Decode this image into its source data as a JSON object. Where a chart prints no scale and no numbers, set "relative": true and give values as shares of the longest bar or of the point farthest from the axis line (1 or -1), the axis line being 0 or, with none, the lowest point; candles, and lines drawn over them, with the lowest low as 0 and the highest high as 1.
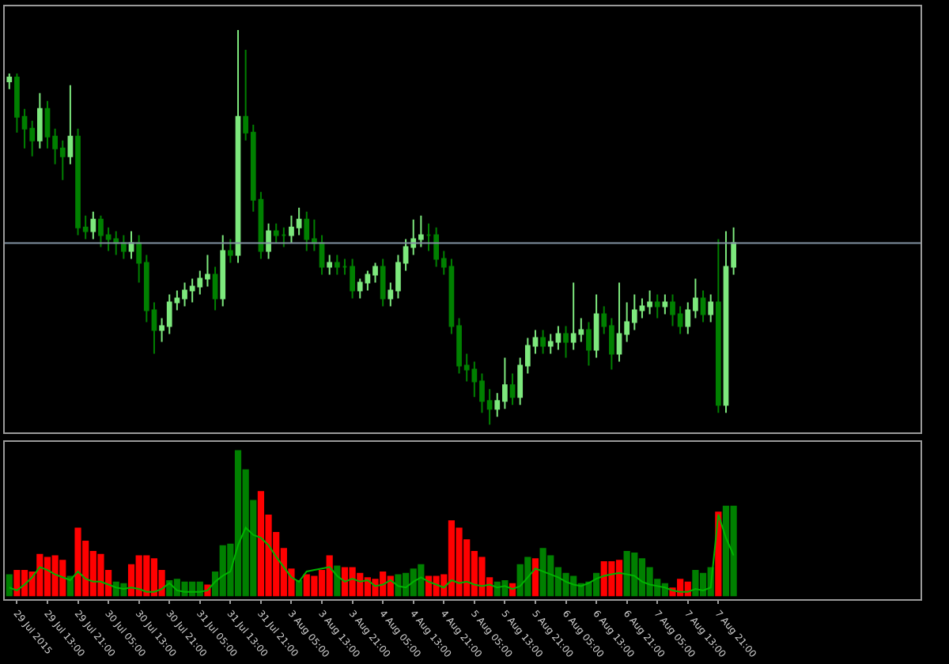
{
  "chart_data": [
    {
      "type": "candlestick",
      "relative": true,
      "tick_labels": false,
      "grid": false,
      "legend": false,
      "colors": [
        "#7de87d",
        "#008000",
        "#008000",
        "#008000",
        "#7de87d",
        "#008000",
        "#008000",
        "#008000",
        "#7de87d",
        "#008000",
        "#008000",
        "#7de87d",
        "#008000",
        "#008000",
        "#008000",
        "#008000",
        "#7de87d",
        "#008000",
        "#008000",
        "#008000",
        "#7de87d",
        "#7de87d",
        "#7de87d",
        "#7de87d",
        "#7de87d",
        "#7de87d",
        "#7de87d",
        "#008000",
        "#7de87d",
        "#008000",
        "#7de87d",
        "#008000",
        "#008000",
        "#008000",
        "#7de87d",
        "#008000",
        "#008000",
        "#7de87d",
        "#7de87d",
        "#008000",
        "#008000",
        "#008000",
        "#7de87d",
        "#008000",
        "#008000",
        "#008000",
        "#7de87d",
        "#7de87d",
        "#7de87d",
        "#008000",
        "#7de87d",
        "#7de87d",
        "#7de87d",
        "#7de87d",
        "#7de87d",
        "#008000",
        "#008000",
        "#008000",
        "#008000",
        "#008000",
        "#008000",
        "#008000",
        "#008000",
        "#008000",
        "#7de87d",
        "#7de87d",
        "#008000",
        "#7de87d",
        "#7de87d",
        "#7de87d",
        "#008000",
        "#7de87d",
        "#7de87d",
        "#008000",
        "#7de87d",
        "#7de87d",
        "#008000",
        "#7de87d",
        "#008000",
        "#008000",
        "#7de87d",
        "#7de87d",
        "#7de87d",
        "#7de87d",
        "#7de87d",
        "#008000",
        "#7de87d",
        "#008000",
        "#008000",
        "#7de87d",
        "#7de87d",
        "#008000",
        "#7de87d",
        "#008000",
        "#7de87d",
        "#7de87d"
      ],
      "categories": [
        null,
        null,
        null,
        null,
        null,
        null,
        null,
        null,
        null,
        null,
        null,
        null,
        null,
        null,
        null,
        null,
        null,
        null,
        null,
        null,
        null,
        null,
        null,
        null,
        null,
        null,
        null,
        null,
        null,
        null,
        null,
        null,
        null,
        null,
        null,
        null,
        null,
        null,
        null,
        null,
        null,
        null,
        null,
        null,
        null,
        null,
        null,
        null,
        null,
        null,
        null,
        null,
        null,
        null,
        null,
        null,
        null,
        null,
        null,
        null,
        null,
        null,
        null,
        null,
        null,
        null,
        null,
        null,
        null,
        null,
        null,
        null,
        null,
        null,
        null,
        null,
        null,
        null,
        null,
        null,
        null,
        null,
        null,
        null,
        null,
        null,
        null,
        null,
        null,
        null,
        null,
        null,
        null,
        null,
        null,
        null
      ],
      "ohlc": [
        [
          0.87,
          0.89,
          0.85,
          0.88
        ],
        [
          0.88,
          0.89,
          0.74,
          0.78
        ],
        [
          0.78,
          0.8,
          0.7,
          0.75
        ],
        [
          0.75,
          0.77,
          0.68,
          0.72
        ],
        [
          0.72,
          0.84,
          0.7,
          0.8
        ],
        [
          0.8,
          0.82,
          0.7,
          0.73
        ],
        [
          0.73,
          0.75,
          0.66,
          0.7
        ],
        [
          0.7,
          0.72,
          0.62,
          0.68
        ],
        [
          0.68,
          0.86,
          0.66,
          0.73
        ],
        [
          0.73,
          0.75,
          0.48,
          0.5
        ],
        [
          0.5,
          0.53,
          0.47,
          0.49
        ],
        [
          0.49,
          0.54,
          0.47,
          0.52
        ],
        [
          0.52,
          0.53,
          0.45,
          0.48
        ],
        [
          0.48,
          0.5,
          0.44,
          0.47
        ],
        [
          0.47,
          0.49,
          0.43,
          0.46
        ],
        [
          0.46,
          0.48,
          0.42,
          0.44
        ],
        [
          0.44,
          0.49,
          0.42,
          0.46
        ],
        [
          0.46,
          0.48,
          0.36,
          0.41
        ],
        [
          0.41,
          0.43,
          0.26,
          0.29
        ],
        [
          0.29,
          0.31,
          0.18,
          0.24
        ],
        [
          0.24,
          0.27,
          0.21,
          0.25
        ],
        [
          0.25,
          0.33,
          0.23,
          0.31
        ],
        [
          0.31,
          0.34,
          0.29,
          0.32
        ],
        [
          0.32,
          0.36,
          0.3,
          0.34
        ],
        [
          0.34,
          0.37,
          0.31,
          0.35
        ],
        [
          0.35,
          0.39,
          0.33,
          0.37
        ],
        [
          0.37,
          0.43,
          0.35,
          0.38
        ],
        [
          0.38,
          0.4,
          0.29,
          0.32
        ],
        [
          0.32,
          0.48,
          0.3,
          0.44
        ],
        [
          0.44,
          0.47,
          0.41,
          0.43
        ],
        [
          0.43,
          1.0,
          0.41,
          0.78
        ],
        [
          0.78,
          0.95,
          0.72,
          0.74
        ],
        [
          0.74,
          0.76,
          0.54,
          0.57
        ],
        [
          0.57,
          0.59,
          0.42,
          0.44
        ],
        [
          0.44,
          0.51,
          0.42,
          0.49
        ],
        [
          0.49,
          0.51,
          0.46,
          0.48
        ],
        [
          0.48,
          0.5,
          0.45,
          0.48
        ],
        [
          0.48,
          0.53,
          0.46,
          0.5
        ],
        [
          0.5,
          0.55,
          0.48,
          0.52
        ],
        [
          0.52,
          0.54,
          0.44,
          0.47
        ],
        [
          0.47,
          0.52,
          0.44,
          0.46
        ],
        [
          0.46,
          0.48,
          0.38,
          0.4
        ],
        [
          0.4,
          0.43,
          0.38,
          0.41
        ],
        [
          0.41,
          0.43,
          0.38,
          0.4
        ],
        [
          0.4,
          0.42,
          0.38,
          0.4
        ],
        [
          0.4,
          0.42,
          0.32,
          0.34
        ],
        [
          0.34,
          0.37,
          0.32,
          0.36
        ],
        [
          0.36,
          0.39,
          0.34,
          0.38
        ],
        [
          0.38,
          0.41,
          0.36,
          0.4
        ],
        [
          0.4,
          0.42,
          0.3,
          0.32
        ],
        [
          0.32,
          0.36,
          0.3,
          0.34
        ],
        [
          0.34,
          0.43,
          0.32,
          0.41
        ],
        [
          0.41,
          0.47,
          0.39,
          0.45
        ],
        [
          0.45,
          0.52,
          0.43,
          0.47
        ],
        [
          0.47,
          0.53,
          0.45,
          0.48
        ],
        [
          0.48,
          0.51,
          0.44,
          0.48
        ],
        [
          0.48,
          0.5,
          0.4,
          0.42
        ],
        [
          0.42,
          0.44,
          0.38,
          0.4
        ],
        [
          0.4,
          0.42,
          0.23,
          0.25
        ],
        [
          0.25,
          0.27,
          0.13,
          0.15
        ],
        [
          0.15,
          0.18,
          0.11,
          0.14
        ],
        [
          0.14,
          0.16,
          0.07,
          0.11
        ],
        [
          0.11,
          0.13,
          0.03,
          0.06
        ],
        [
          0.06,
          0.09,
          0.0,
          0.04
        ],
        [
          0.04,
          0.08,
          0.02,
          0.06
        ],
        [
          0.06,
          0.17,
          0.04,
          0.1
        ],
        [
          0.1,
          0.13,
          0.05,
          0.07
        ],
        [
          0.07,
          0.17,
          0.05,
          0.15
        ],
        [
          0.15,
          0.22,
          0.13,
          0.2
        ],
        [
          0.2,
          0.24,
          0.18,
          0.22
        ],
        [
          0.22,
          0.24,
          0.18,
          0.2
        ],
        [
          0.2,
          0.23,
          0.18,
          0.21
        ],
        [
          0.21,
          0.25,
          0.19,
          0.23
        ],
        [
          0.23,
          0.25,
          0.17,
          0.21
        ],
        [
          0.21,
          0.36,
          0.19,
          0.23
        ],
        [
          0.23,
          0.27,
          0.21,
          0.24
        ],
        [
          0.24,
          0.26,
          0.15,
          0.19
        ],
        [
          0.19,
          0.33,
          0.17,
          0.28
        ],
        [
          0.28,
          0.3,
          0.23,
          0.25
        ],
        [
          0.25,
          0.27,
          0.14,
          0.18
        ],
        [
          0.18,
          0.36,
          0.16,
          0.23
        ],
        [
          0.23,
          0.31,
          0.21,
          0.26
        ],
        [
          0.26,
          0.33,
          0.24,
          0.29
        ],
        [
          0.29,
          0.32,
          0.27,
          0.3
        ],
        [
          0.3,
          0.34,
          0.28,
          0.31
        ],
        [
          0.31,
          0.33,
          0.27,
          0.3
        ],
        [
          0.3,
          0.33,
          0.28,
          0.31
        ],
        [
          0.31,
          0.33,
          0.25,
          0.28
        ],
        [
          0.28,
          0.3,
          0.23,
          0.25
        ],
        [
          0.25,
          0.31,
          0.23,
          0.29
        ],
        [
          0.29,
          0.37,
          0.27,
          0.32
        ],
        [
          0.32,
          0.34,
          0.26,
          0.28
        ],
        [
          0.28,
          0.33,
          0.26,
          0.31
        ],
        [
          0.31,
          0.47,
          0.03,
          0.05
        ],
        [
          0.05,
          0.49,
          0.03,
          0.4
        ],
        [
          0.4,
          0.5,
          0.38,
          0.46
        ]
      ],
      "ref_lines": [
        {
          "axis": "y",
          "value": 0.46,
          "color": "#8090a0"
        }
      ]
    },
    {
      "type": "bar",
      "relative": true,
      "tick_labels": "x",
      "grid": false,
      "legend": false,
      "categories": [
        null,
        "29 Jul 2015",
        null,
        null,
        null,
        "29 Jul 13:00",
        null,
        null,
        null,
        "29 Jul 21:00",
        null,
        null,
        null,
        "30 Jul 05:00",
        null,
        null,
        null,
        "30 Jul 13:00",
        null,
        null,
        null,
        "30 Jul 21:00",
        null,
        null,
        null,
        "31 Jul 05:00",
        null,
        null,
        null,
        "31 Jul 13:00",
        null,
        null,
        null,
        "31 Jul 21:00",
        null,
        null,
        null,
        "3 Aug 05:00",
        null,
        null,
        null,
        "3 Aug 13:00",
        null,
        null,
        null,
        "3 Aug 21:00",
        null,
        null,
        null,
        "4 Aug 05:00",
        null,
        null,
        null,
        "4 Aug 13:00",
        null,
        null,
        null,
        "4 Aug 21:00",
        null,
        null,
        null,
        "5 Aug 05:00",
        null,
        null,
        null,
        "5 Aug 13:00",
        null,
        null,
        null,
        "5 Aug 21:00",
        null,
        null,
        null,
        "6 Aug 05:00",
        null,
        null,
        null,
        "6 Aug 13:00",
        null,
        null,
        null,
        "6 Aug 21:00",
        null,
        null,
        null,
        "7 Aug 05:00",
        null,
        null,
        null,
        "7 Aug 13:00",
        null,
        null,
        null,
        "7 Aug 21:00",
        null,
        null
      ],
      "series": [
        {
          "type": "bar",
          "values": [
            0.15,
            0.18,
            0.18,
            0.17,
            0.29,
            0.27,
            0.28,
            0.25,
            0.14,
            0.47,
            0.38,
            0.31,
            0.29,
            0.18,
            0.1,
            0.09,
            0.22,
            0.28,
            0.28,
            0.26,
            0.18,
            0.11,
            0.12,
            0.1,
            0.1,
            0.1,
            0.08,
            0.17,
            0.35,
            0.36,
            1.0,
            0.87,
            0.66,
            0.72,
            0.56,
            0.44,
            0.33,
            0.19,
            0.11,
            0.15,
            0.14,
            0.18,
            0.28,
            0.21,
            0.2,
            0.2,
            0.16,
            0.13,
            0.12,
            0.17,
            0.14,
            0.15,
            0.16,
            0.19,
            0.22,
            0.14,
            0.14,
            0.15,
            0.52,
            0.47,
            0.39,
            0.31,
            0.27,
            0.13,
            0.1,
            0.11,
            0.09,
            0.22,
            0.27,
            0.26,
            0.33,
            0.28,
            0.2,
            0.16,
            0.14,
            0.09,
            0.1,
            0.16,
            0.24,
            0.24,
            0.25,
            0.31,
            0.3,
            0.26,
            0.2,
            0.12,
            0.09,
            0.06,
            0.12,
            0.1,
            0.18,
            0.16,
            0.2,
            0.58,
            0.62,
            0.62
          ],
          "colors": [
            "#008000",
            "#ff0000",
            "#ff0000",
            "#ff0000",
            "#ff0000",
            "#ff0000",
            "#ff0000",
            "#ff0000",
            "#008000",
            "#ff0000",
            "#ff0000",
            "#ff0000",
            "#ff0000",
            "#ff0000",
            "#008000",
            "#008000",
            "#ff0000",
            "#ff0000",
            "#ff0000",
            "#ff0000",
            "#ff0000",
            "#008000",
            "#008000",
            "#008000",
            "#008000",
            "#008000",
            "#ff0000",
            "#008000",
            "#008000",
            "#008000",
            "#008000",
            "#008000",
            "#008000",
            "#ff0000",
            "#ff0000",
            "#ff0000",
            "#ff0000",
            "#ff0000",
            "#008000",
            "#ff0000",
            "#ff0000",
            "#ff0000",
            "#ff0000",
            "#008000",
            "#ff0000",
            "#ff0000",
            "#ff0000",
            "#ff0000",
            "#ff0000",
            "#ff0000",
            "#ff0000",
            "#008000",
            "#008000",
            "#008000",
            "#008000",
            "#ff0000",
            "#ff0000",
            "#ff0000",
            "#ff0000",
            "#ff0000",
            "#ff0000",
            "#ff0000",
            "#ff0000",
            "#ff0000",
            "#008000",
            "#008000",
            "#ff0000",
            "#008000",
            "#008000",
            "#ff0000",
            "#008000",
            "#008000",
            "#008000",
            "#008000",
            "#008000",
            "#008000",
            "#008000",
            "#008000",
            "#ff0000",
            "#ff0000",
            "#ff0000",
            "#008000",
            "#008000",
            "#008000",
            "#008000",
            "#008000",
            "#008000",
            "#ff0000",
            "#ff0000",
            "#ff0000",
            "#008000",
            "#008000",
            "#008000",
            "#ff0000",
            "#008000",
            "#008000"
          ]
        },
        {
          "type": "line",
          "color": "#00b400",
          "values": [
            0.06,
            0.04,
            0.08,
            0.13,
            0.2,
            0.18,
            0.15,
            0.13,
            0.11,
            0.17,
            0.12,
            0.1,
            0.1,
            0.08,
            0.06,
            0.05,
            0.06,
            0.05,
            0.03,
            0.03,
            0.05,
            0.09,
            0.04,
            0.03,
            0.03,
            0.03,
            0.04,
            0.1,
            0.14,
            0.17,
            0.35,
            0.47,
            0.42,
            0.4,
            0.35,
            0.27,
            0.2,
            0.13,
            0.1,
            0.17,
            0.18,
            0.19,
            0.2,
            0.14,
            0.1,
            0.12,
            0.1,
            0.11,
            0.07,
            0.08,
            0.11,
            0.07,
            0.06,
            0.1,
            0.13,
            0.1,
            0.08,
            0.06,
            0.11,
            0.09,
            0.1,
            0.08,
            0.07,
            0.08,
            0.06,
            0.07,
            0.05,
            0.07,
            0.13,
            0.19,
            0.17,
            0.15,
            0.13,
            0.1,
            0.08,
            0.07,
            0.09,
            0.12,
            0.14,
            0.15,
            0.16,
            0.15,
            0.14,
            0.1,
            0.08,
            0.07,
            0.06,
            0.04,
            0.03,
            0.03,
            0.05,
            0.04,
            0.06,
            0.56,
            0.4,
            0.28
          ]
        }
      ]
    }
  ]
}
